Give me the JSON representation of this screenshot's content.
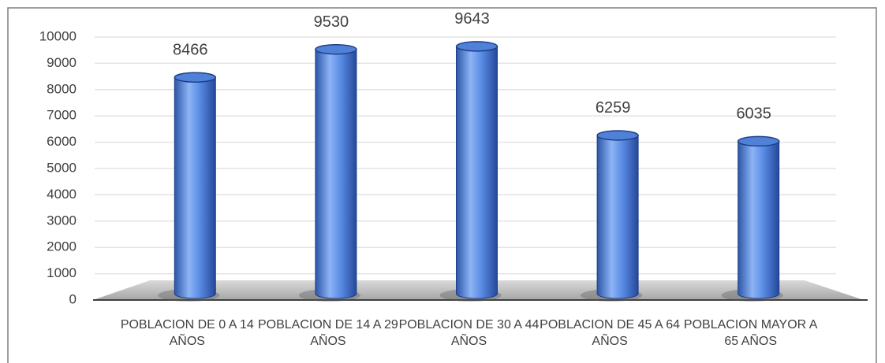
{
  "chart_data": {
    "type": "bar",
    "categories": [
      "POBLACION DE 0 A 14 AÑOS",
      "POBLACION DE 14 A 29 AÑOS",
      "POBLACION DE 30 A 44 AÑOS",
      "POBLACION DE 45 A 64 AÑOS",
      "POBLACION MAYOR A 65 AÑOS"
    ],
    "values": [
      8466,
      9530,
      9643,
      6259,
      6035
    ],
    "color": "#4f81d9",
    "ylim": [
      0,
      10000
    ],
    "yticks": [
      0,
      1000,
      2000,
      3000,
      4000,
      5000,
      6000,
      7000,
      8000,
      9000,
      10000
    ],
    "grid": true
  }
}
